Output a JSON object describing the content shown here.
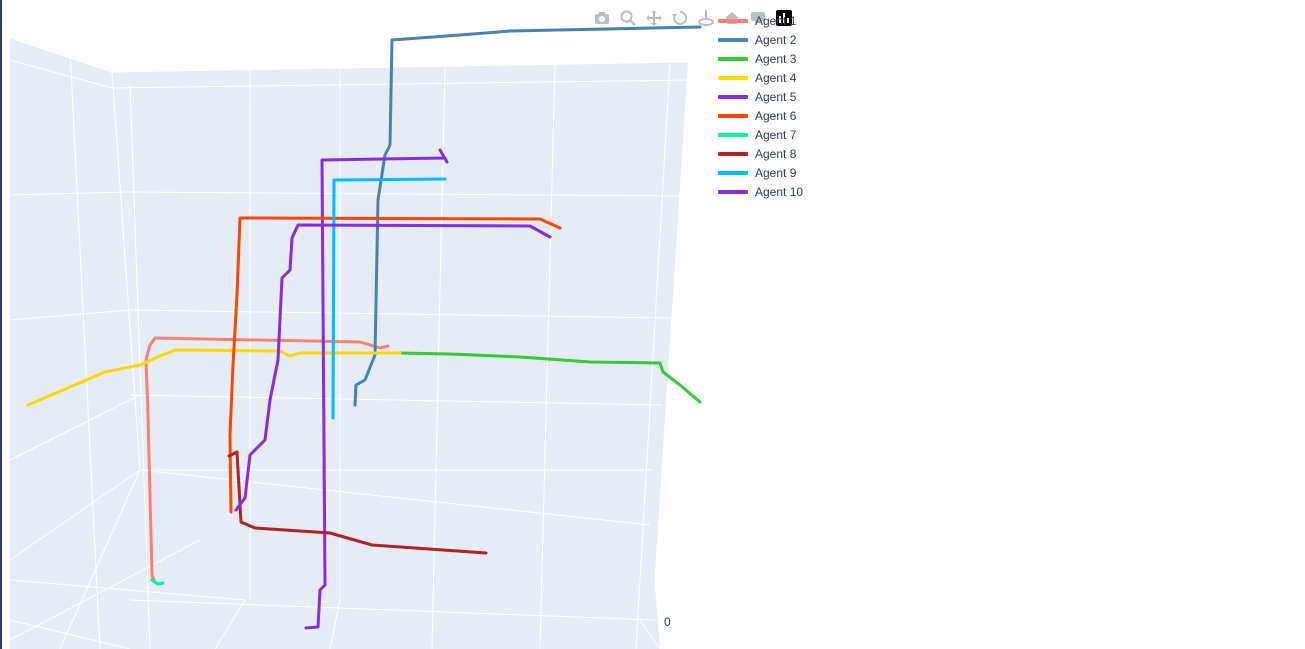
{
  "chart_data": {
    "type": "line",
    "subtype": "3d-line",
    "title": "",
    "tick_labels": [
      "0"
    ],
    "grid": true,
    "legend_placement": "top-right",
    "background_color": "#e5ecf6",
    "grid_color": "#ffffff",
    "series": [
      {
        "name": "Agent 1",
        "color": "#fa8072",
        "points": [
          [
            154,
            580
          ],
          [
            152,
            575
          ],
          [
            148,
            415
          ],
          [
            146,
            360
          ],
          [
            150,
            345
          ],
          [
            155,
            338
          ],
          [
            360,
            342
          ],
          [
            380,
            348
          ],
          [
            388,
            346
          ]
        ]
      },
      {
        "name": "Agent 2",
        "color": "#4682b4",
        "points": [
          [
            355,
            405
          ],
          [
            356,
            385
          ],
          [
            365,
            380
          ],
          [
            375,
            355
          ],
          [
            378,
            200
          ],
          [
            385,
            155
          ],
          [
            390,
            145
          ],
          [
            392,
            40
          ],
          [
            460,
            35
          ],
          [
            510,
            31
          ],
          [
            700,
            27
          ]
        ]
      },
      {
        "name": "Agent 3",
        "color": "#32cd32",
        "points": [
          [
            398,
            353
          ],
          [
            450,
            354
          ],
          [
            520,
            357
          ],
          [
            590,
            362
          ],
          [
            660,
            363
          ],
          [
            663,
            372
          ],
          [
            680,
            385
          ],
          [
            700,
            402
          ]
        ]
      },
      {
        "name": "Agent 4",
        "color": "#ffd700",
        "points": [
          [
            28,
            405
          ],
          [
            105,
            372
          ],
          [
            140,
            365
          ],
          [
            160,
            356
          ],
          [
            175,
            350
          ],
          [
            280,
            351
          ],
          [
            290,
            356
          ],
          [
            300,
            353
          ],
          [
            400,
            353
          ]
        ]
      },
      {
        "name": "Agent 5",
        "color": "#8a2be2",
        "points": [
          [
            306,
            628
          ],
          [
            318,
            627
          ],
          [
            320,
            590
          ],
          [
            325,
            585
          ],
          [
            322,
            160
          ],
          [
            445,
            158
          ],
          [
            447,
            162
          ],
          [
            440,
            150
          ]
        ]
      },
      {
        "name": "Agent 6",
        "color": "#ff4500",
        "points": [
          [
            231,
            512
          ],
          [
            230,
            435
          ],
          [
            233,
            365
          ],
          [
            237,
            295
          ],
          [
            240,
            218
          ],
          [
            540,
            219
          ],
          [
            560,
            228
          ]
        ]
      },
      {
        "name": "Agent 7",
        "color": "#00fa9a",
        "points": [
          [
            152,
            580
          ],
          [
            158,
            584
          ],
          [
            163,
            583
          ]
        ]
      },
      {
        "name": "Agent 8",
        "color": "#b22222",
        "points": [
          [
            229,
            456
          ],
          [
            237,
            452
          ],
          [
            241,
            522
          ],
          [
            255,
            528
          ],
          [
            330,
            533
          ],
          [
            372,
            545
          ],
          [
            486,
            553
          ]
        ]
      },
      {
        "name": "Agent 9",
        "color": "#00bfff",
        "points": [
          [
            333,
            418
          ],
          [
            334,
            180
          ],
          [
            445,
            179
          ]
        ]
      },
      {
        "name": "Agent 10",
        "color": "#8a2be2",
        "points": [
          [
            236,
            510
          ],
          [
            245,
            498
          ],
          [
            250,
            455
          ],
          [
            265,
            440
          ],
          [
            270,
            400
          ],
          [
            278,
            360
          ],
          [
            282,
            278
          ],
          [
            290,
            270
          ],
          [
            292,
            238
          ],
          [
            298,
            225
          ],
          [
            530,
            226
          ],
          [
            550,
            237
          ]
        ]
      }
    ]
  },
  "modebar": {
    "icons": [
      "camera-icon",
      "zoom-icon",
      "pan-icon",
      "orbit-rotation-icon",
      "turntable-rotation-icon",
      "reset-camera-icon",
      "hover-icon",
      "plotly-logo-icon"
    ]
  }
}
